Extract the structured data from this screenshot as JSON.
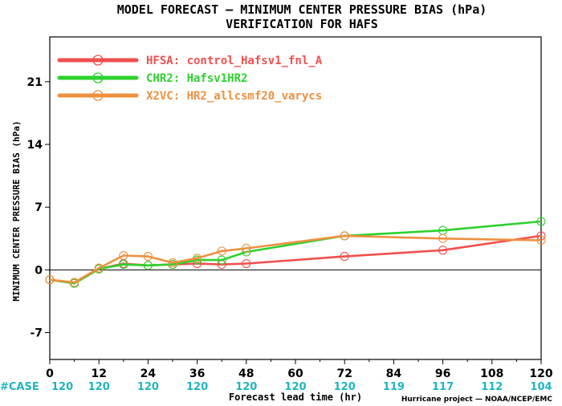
{
  "colors": {
    "HFSA": "#f0504e",
    "CHR2": "#2ed22e",
    "X2VC": "#ee9040",
    "cases": "#1fb5c0",
    "zero_line": "#000000",
    "background": "#ffffff"
  },
  "chart_data": {
    "type": "line",
    "title": "MODEL FORECAST — MINIMUM CENTER PRESSURE BIAS (hPa)",
    "subtitle": "VERIFICATION FOR HAFS",
    "xlabel": "Forecast lead time (hr)",
    "ylabel": "MINIMUM CENTER PRESSURE BIAS (hPa)",
    "xlim": [
      0,
      120
    ],
    "ylim": [
      -10,
      26
    ],
    "xticks": [
      "0",
      "12",
      "24",
      "36",
      "48",
      "60",
      "72",
      "84",
      "96",
      "108",
      "120"
    ],
    "yticks": [
      "-7",
      "0",
      "7",
      "14",
      "21"
    ],
    "legend_position": "top-left",
    "series": [
      {
        "name": "HFSA: control_Hafsv1_fnl_A",
        "x": [
          0,
          6,
          12,
          18,
          24,
          30,
          36,
          42,
          48,
          72,
          96,
          120
        ],
        "y": [
          -1.1,
          -1.5,
          0.1,
          0.7,
          0.5,
          0.6,
          0.7,
          0.6,
          0.7,
          1.5,
          2.2,
          3.8
        ]
      },
      {
        "name": "CHR2: Hafsv1HR2",
        "x": [
          0,
          6,
          12,
          18,
          24,
          30,
          36,
          42,
          48,
          72,
          96,
          120
        ],
        "y": [
          -1.1,
          -1.5,
          0.1,
          0.6,
          0.5,
          0.6,
          1.1,
          1.1,
          2.0,
          3.8,
          4.4,
          5.4
        ]
      },
      {
        "name": "X2VC: HR2_allcsmf20_varycs",
        "x": [
          0,
          6,
          12,
          18,
          24,
          30,
          36,
          42,
          48,
          72,
          96,
          120
        ],
        "y": [
          -1.1,
          -1.4,
          0.2,
          1.6,
          1.5,
          0.8,
          1.3,
          2.1,
          2.4,
          3.8,
          3.5,
          3.3
        ]
      }
    ],
    "cases": {
      "label": "#CASE",
      "x": [
        0,
        12,
        24,
        36,
        48,
        60,
        72,
        84,
        96,
        108,
        120
      ],
      "values": [
        "120",
        "120",
        "120",
        "120",
        "120",
        "120",
        "120",
        "119",
        "117",
        "112",
        "104"
      ]
    },
    "credit": "Hurricane project — NOAA/NCEP/EMC"
  }
}
